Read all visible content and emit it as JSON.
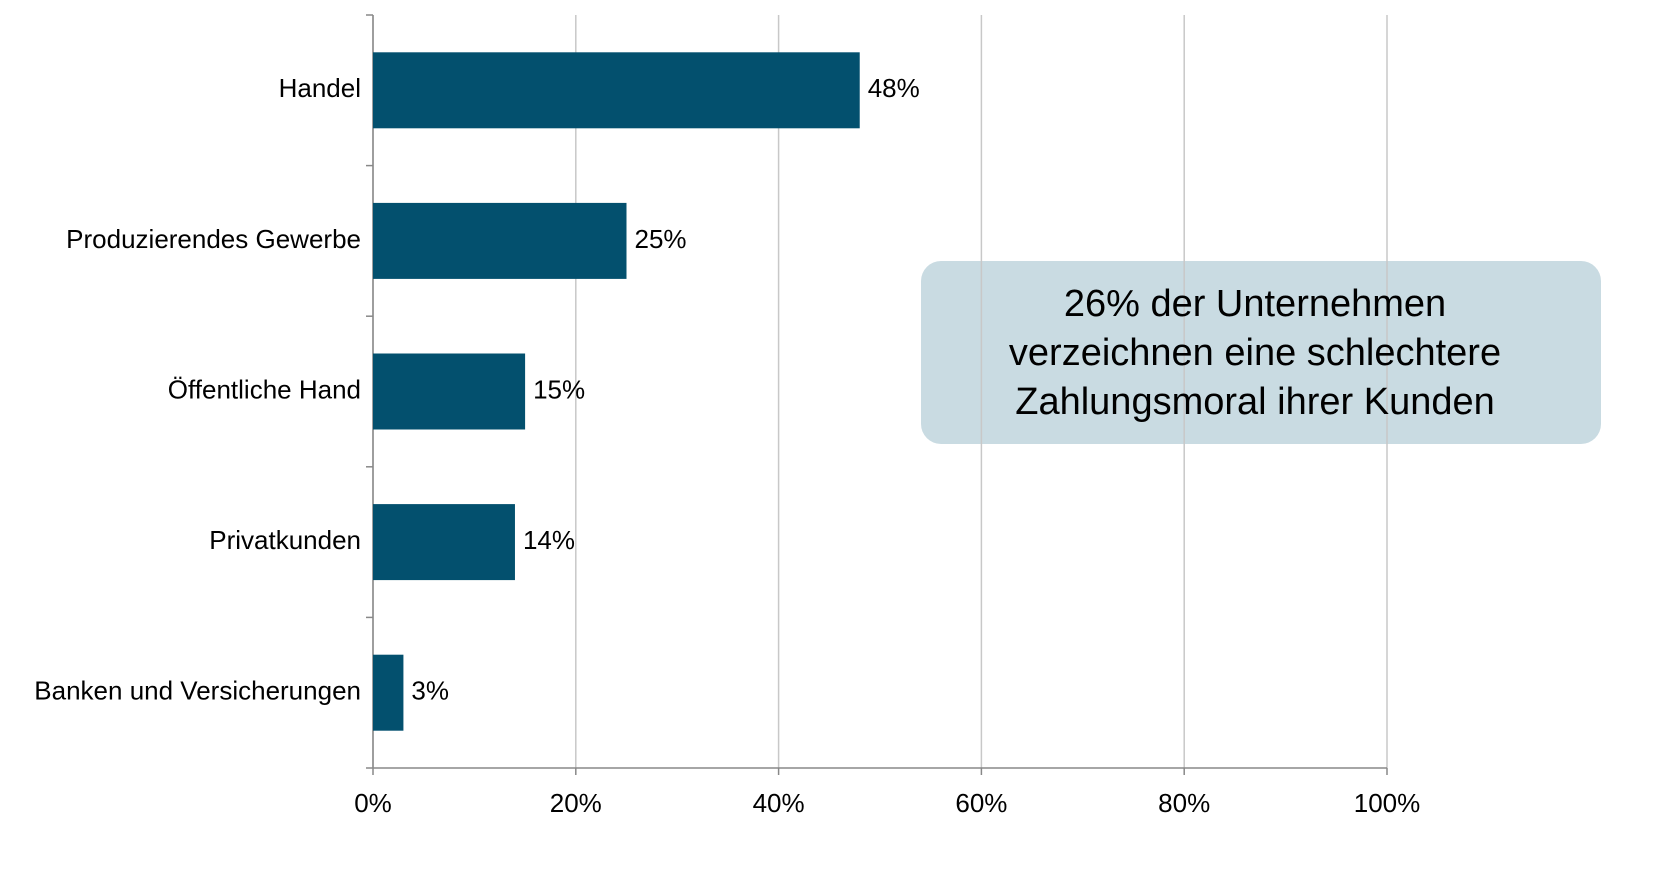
{
  "chart_data": {
    "type": "bar",
    "orientation": "horizontal",
    "categories": [
      "Handel",
      "Produzierendes Gewerbe",
      "Öffentliche Hand",
      "Privatkunden",
      "Banken und Versicherungen"
    ],
    "values": [
      48,
      25,
      15,
      14,
      3
    ],
    "value_labels": [
      "48%",
      "25%",
      "15%",
      "14%",
      "3%"
    ],
    "color": "#03506e",
    "xlim": [
      0,
      100
    ],
    "xticks": [
      {
        "value": 0,
        "label": "0%"
      },
      {
        "value": 20,
        "label": "20%"
      },
      {
        "value": 40,
        "label": "40%"
      },
      {
        "value": 60,
        "label": "60%"
      },
      {
        "value": 80,
        "label": "80%"
      },
      {
        "value": 100,
        "label": "100%"
      }
    ],
    "grid": true,
    "annotation": [
      "26% der Unternehmen",
      "verzeichnen eine schlechtere",
      "Zahlungsmoral ihrer Kunden"
    ]
  }
}
